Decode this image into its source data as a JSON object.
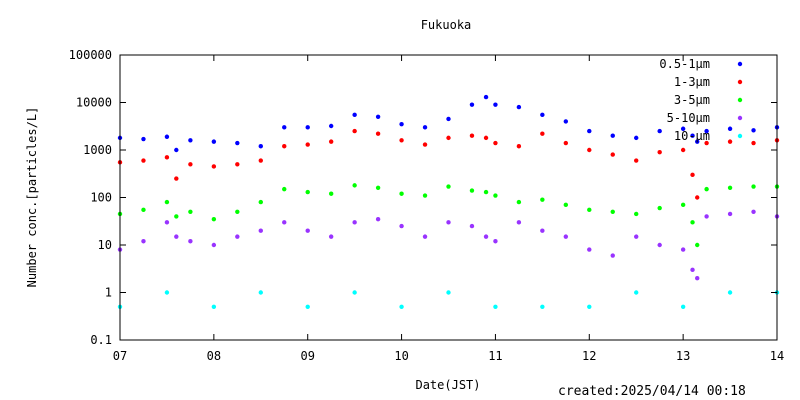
{
  "chart_data": {
    "type": "scatter",
    "title": "Fukuoka",
    "xlabel": "Date(JST)",
    "ylabel": "Number conc.[particles/L]",
    "y_scale": "log",
    "ylim": [
      0.1,
      100000
    ],
    "yticks": [
      "0.1",
      "1",
      "10",
      "100",
      "1000",
      "10000",
      "100000"
    ],
    "xlim": [
      "07",
      "14"
    ],
    "xticks": [
      "07",
      "08",
      "09",
      "10",
      "11",
      "12",
      "13",
      "14"
    ],
    "legend_position": "top-right",
    "series": [
      {
        "name": "0.5-1μm",
        "color": "#0000ff",
        "x": [
          "07",
          "07.25",
          "07.5",
          "07.6",
          "07.75",
          "08",
          "08.25",
          "08.5",
          "08.75",
          "09",
          "09.25",
          "09.5",
          "09.75",
          "10",
          "10.25",
          "10.5",
          "10.75",
          "10.9",
          "11",
          "11.25",
          "11.5",
          "11.75",
          "12",
          "12.25",
          "12.5",
          "12.75",
          "13",
          "13.1",
          "13.15",
          "13.25",
          "13.5",
          "13.75",
          "14"
        ],
        "values": [
          1800,
          1700,
          1900,
          1000,
          1600,
          1500,
          1400,
          1200,
          3000,
          3000,
          3200,
          5500,
          5000,
          3500,
          3000,
          4500,
          9000,
          13000,
          9000,
          8000,
          5500,
          4000,
          2500,
          2000,
          1800,
          2500,
          2800,
          2000,
          1500,
          2500,
          2800,
          2600,
          3000
        ]
      },
      {
        "name": "1-3μm",
        "color": "#ff0000",
        "x": [
          "07",
          "07.25",
          "07.5",
          "07.6",
          "07.75",
          "08",
          "08.25",
          "08.5",
          "08.75",
          "09",
          "09.25",
          "09.5",
          "09.75",
          "10",
          "10.25",
          "10.5",
          "10.75",
          "10.9",
          "11",
          "11.25",
          "11.5",
          "11.75",
          "12",
          "12.25",
          "12.5",
          "12.75",
          "13",
          "13.1",
          "13.15",
          "13.25",
          "13.5",
          "13.75",
          "14"
        ],
        "values": [
          550,
          600,
          700,
          250,
          500,
          450,
          500,
          600,
          1200,
          1300,
          1500,
          2500,
          2200,
          1600,
          1300,
          1800,
          2000,
          1800,
          1400,
          1200,
          2200,
          1400,
          1000,
          800,
          600,
          900,
          1000,
          300,
          100,
          1400,
          1500,
          1400,
          1600
        ]
      },
      {
        "name": "3-5μm",
        "color": "#00ff00",
        "x": [
          "07",
          "07.25",
          "07.5",
          "07.6",
          "07.75",
          "08",
          "08.25",
          "08.5",
          "08.75",
          "09",
          "09.25",
          "09.5",
          "09.75",
          "10",
          "10.25",
          "10.5",
          "10.75",
          "10.9",
          "11",
          "11.25",
          "11.5",
          "11.75",
          "12",
          "12.25",
          "12.5",
          "12.75",
          "13",
          "13.1",
          "13.15",
          "13.25",
          "13.5",
          "13.75",
          "14"
        ],
        "values": [
          45,
          55,
          80,
          40,
          50,
          35,
          50,
          80,
          150,
          130,
          120,
          180,
          160,
          120,
          110,
          170,
          140,
          130,
          110,
          80,
          90,
          70,
          55,
          50,
          45,
          60,
          70,
          30,
          10,
          150,
          160,
          170,
          170
        ]
      },
      {
        "name": "5-10μm",
        "color": "#9933ff",
        "x": [
          "07",
          "07.25",
          "07.5",
          "07.6",
          "07.75",
          "08",
          "08.25",
          "08.5",
          "08.75",
          "09",
          "09.25",
          "09.5",
          "09.75",
          "10",
          "10.25",
          "10.5",
          "10.75",
          "10.9",
          "11",
          "11.25",
          "11.5",
          "11.75",
          "12",
          "12.25",
          "12.5",
          "12.75",
          "13",
          "13.1",
          "13.15",
          "13.25",
          "13.5",
          "13.75",
          "14"
        ],
        "values": [
          8,
          12,
          30,
          15,
          12,
          10,
          15,
          20,
          30,
          20,
          15,
          30,
          35,
          25,
          15,
          30,
          25,
          15,
          12,
          30,
          20,
          15,
          8,
          6,
          15,
          10,
          8,
          3,
          2,
          40,
          45,
          50,
          40
        ]
      },
      {
        "name": "10-μm",
        "color": "#00ffff",
        "x": [
          "07",
          "07.5",
          "08",
          "08.5",
          "09",
          "09.5",
          "10",
          "10.5",
          "11",
          "11.5",
          "12",
          "12.5",
          "13",
          "13.5",
          "14"
        ],
        "values": [
          0.5,
          1,
          0.5,
          1,
          0.5,
          1,
          0.5,
          1,
          0.5,
          0.5,
          0.5,
          1,
          0.5,
          1,
          1
        ]
      }
    ]
  },
  "created_label": "created:2025/04/14 00:18"
}
